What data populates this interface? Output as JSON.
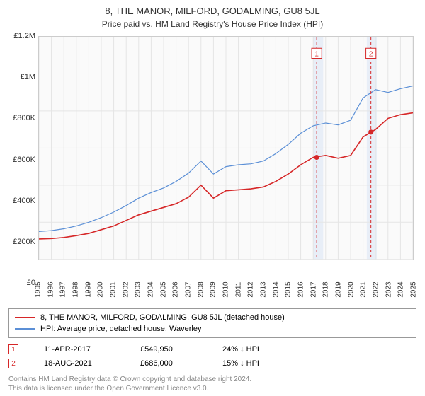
{
  "title": "8, THE MANOR, MILFORD, GODALMING, GU8 5JL",
  "subtitle": "Price paid vs. HM Land Registry's House Price Index (HPI)",
  "chart": {
    "type": "line",
    "background_color": "#fafafa",
    "grid_color": "#e5e5e5",
    "y_axis": {
      "min": 0,
      "max": 1200000,
      "ticks": [
        0,
        200000,
        400000,
        600000,
        800000,
        1000000,
        1200000
      ],
      "tick_labels": [
        "£0",
        "£200K",
        "£400K",
        "£600K",
        "£800K",
        "£1M",
        "£1.2M"
      ],
      "label_fontsize": 11
    },
    "x_axis": {
      "min": 1995,
      "max": 2025,
      "ticks": [
        1995,
        1996,
        1997,
        1998,
        1999,
        2000,
        2001,
        2002,
        2003,
        2004,
        2005,
        2006,
        2007,
        2008,
        2009,
        2010,
        2011,
        2012,
        2013,
        2014,
        2015,
        2016,
        2017,
        2018,
        2019,
        2020,
        2021,
        2022,
        2023,
        2024,
        2025
      ],
      "label_fontsize": 10
    },
    "shaded_bands": [
      {
        "x_start": 2017.0,
        "x_end": 2017.8,
        "fill": "#e8eef7"
      },
      {
        "x_start": 2021.3,
        "x_end": 2022.1,
        "fill": "#e8eef7"
      }
    ],
    "vlines": [
      {
        "x": 2017.28,
        "color": "#d62728",
        "dash": "4,3",
        "label": "1"
      },
      {
        "x": 2021.63,
        "color": "#d62728",
        "dash": "4,3",
        "label": "2"
      }
    ],
    "series": [
      {
        "name": "property",
        "label": "8, THE MANOR, MILFORD, GODALMING, GU8 5JL (detached house)",
        "color": "#d62728",
        "width": 1.6,
        "ys": [
          110000,
          112000,
          118000,
          128000,
          140000,
          160000,
          180000,
          210000,
          240000,
          260000,
          280000,
          300000,
          335000,
          400000,
          330000,
          370000,
          375000,
          380000,
          390000,
          420000,
          460000,
          510000,
          550000,
          560000,
          545000,
          560000,
          660000,
          700000,
          760000,
          780000,
          790000
        ]
      },
      {
        "name": "hpi",
        "label": "HPI: Average price, detached house, Waverley",
        "color": "#5b8fd6",
        "width": 1.2,
        "ys": [
          150000,
          155000,
          165000,
          180000,
          200000,
          225000,
          255000,
          290000,
          330000,
          360000,
          385000,
          420000,
          465000,
          530000,
          460000,
          500000,
          510000,
          515000,
          530000,
          570000,
          620000,
          680000,
          720000,
          735000,
          725000,
          750000,
          870000,
          915000,
          900000,
          920000,
          935000
        ]
      }
    ],
    "sale_markers": [
      {
        "x": 2017.28,
        "y": 549950,
        "color": "#d62728"
      },
      {
        "x": 2021.63,
        "y": 686000,
        "color": "#d62728"
      }
    ]
  },
  "legend": {
    "rows": [
      {
        "color": "#d62728",
        "label": "8, THE MANOR, MILFORD, GODALMING, GU8 5JL (detached house)"
      },
      {
        "color": "#5b8fd6",
        "label": "HPI: Average price, detached house, Waverley"
      }
    ]
  },
  "markers": [
    {
      "num": "1",
      "color": "#d62728",
      "date": "11-APR-2017",
      "price": "£549,950",
      "delta": "24% ↓ HPI"
    },
    {
      "num": "2",
      "color": "#d62728",
      "date": "18-AUG-2021",
      "price": "£686,000",
      "delta": "15% ↓ HPI"
    }
  ],
  "footer_line1": "Contains HM Land Registry data © Crown copyright and database right 2024.",
  "footer_line2": "This data is licensed under the Open Government Licence v3.0."
}
